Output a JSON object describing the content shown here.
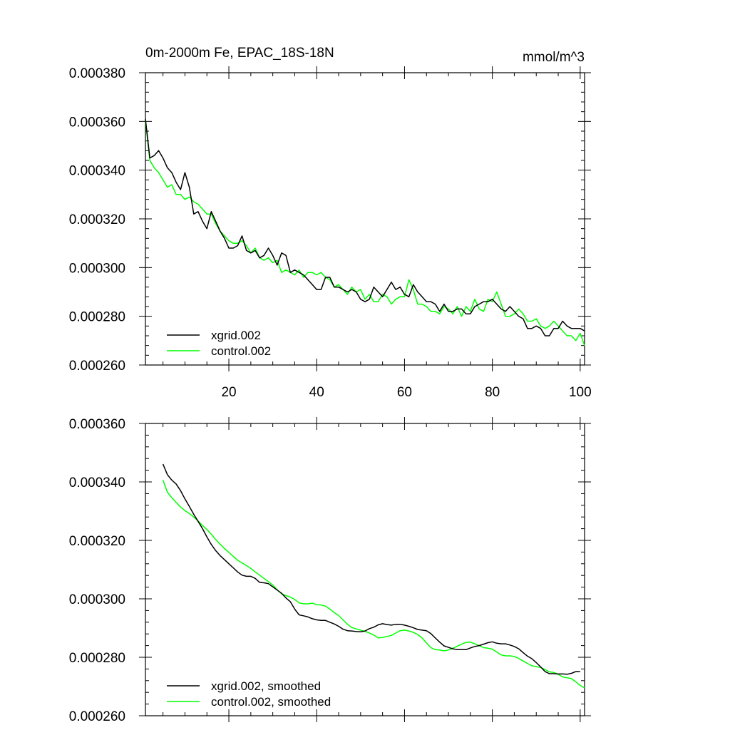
{
  "chart_data": [
    {
      "type": "line",
      "title": "0m-2000m Fe, EPAC_18S-18N",
      "units": "mmol/m^3",
      "xlabel": "",
      "ylabel": "",
      "xlim": [
        1,
        101
      ],
      "ylim": [
        0.00026,
        0.00038
      ],
      "xticks": [
        20,
        40,
        60,
        80,
        100
      ],
      "yticks": [
        0.00026,
        0.00028,
        0.0003,
        0.00032,
        0.00034,
        0.00036,
        0.00038
      ],
      "ytick_labels": [
        "0.000260",
        "0.000280",
        "0.000300",
        "0.000320",
        "0.000340",
        "0.000360",
        "0.000380"
      ],
      "legend_position": "bottom-left",
      "series": [
        {
          "name": "xgrid.002",
          "color": "#000000",
          "x_start": 1,
          "values": [
            0.000361,
            0.000345,
            0.000346,
            0.000348,
            0.000345,
            0.000341,
            0.000339,
            0.000335,
            0.000332,
            0.000339,
            0.000333,
            0.000322,
            0.000323,
            0.000319,
            0.000316,
            0.000323,
            0.000319,
            0.000315,
            0.000312,
            0.000308,
            0.000308,
            0.000309,
            0.000313,
            0.000307,
            0.000306,
            0.000307,
            0.000304,
            0.000305,
            0.000308,
            0.000305,
            0.000301,
            0.000306,
            0.000305,
            0.000298,
            0.000299,
            0.000298,
            0.000297,
            0.000295,
            0.000293,
            0.000291,
            0.000291,
            0.000296,
            0.000296,
            0.000292,
            0.000292,
            0.000291,
            0.00029,
            0.000291,
            0.00029,
            0.000287,
            0.000286,
            0.000287,
            0.000292,
            0.00029,
            0.000288,
            0.000291,
            0.000294,
            0.000291,
            0.000292,
            0.000289,
            0.000288,
            0.000293,
            0.00029,
            0.000288,
            0.000286,
            0.000286,
            0.000285,
            0.000282,
            0.000285,
            0.000282,
            0.000282,
            0.000283,
            0.000283,
            0.000281,
            0.000281,
            0.000284,
            0.000285,
            0.000286,
            0.000286,
            0.000287,
            0.000285,
            0.000283,
            0.000282,
            0.000284,
            0.000282,
            0.00028,
            0.000279,
            0.000275,
            0.000275,
            0.000276,
            0.000275,
            0.000272,
            0.000272,
            0.000275,
            0.000275,
            0.000278,
            0.000276,
            0.000275,
            0.000275,
            0.000275,
            0.000274
          ]
        },
        {
          "name": "control.002",
          "color": "#00ff00",
          "x_start": 1,
          "values": [
            0.00036,
            0.000344,
            0.000341,
            0.000339,
            0.000336,
            0.000333,
            0.000334,
            0.00033,
            0.00033,
            0.000328,
            0.000329,
            0.000327,
            0.000326,
            0.000324,
            0.000322,
            0.000322,
            0.000318,
            0.000315,
            0.000313,
            0.000311,
            0.00031,
            0.00031,
            0.000311,
            0.000309,
            0.000306,
            0.000308,
            0.000304,
            0.000303,
            0.000304,
            0.000302,
            0.000303,
            0.000298,
            0.000299,
            0.000298,
            0.000297,
            0.000299,
            0.000296,
            0.000298,
            0.000298,
            0.000297,
            0.000298,
            0.000296,
            0.000295,
            0.000292,
            0.000293,
            0.000291,
            0.000289,
            0.000292,
            0.00029,
            0.000291,
            0.000287,
            0.000289,
            0.000286,
            0.000286,
            0.000289,
            0.000288,
            0.000285,
            0.000287,
            0.000288,
            0.000288,
            0.000295,
            0.000291,
            0.000285,
            0.000285,
            0.000284,
            0.000282,
            0.000282,
            0.000281,
            0.000284,
            0.000283,
            0.000281,
            0.000284,
            0.00028,
            0.000284,
            0.000282,
            0.000287,
            0.000283,
            0.000282,
            0.000287,
            0.000286,
            0.00029,
            0.000285,
            0.00028,
            0.00028,
            0.000281,
            0.000283,
            0.000281,
            0.000278,
            0.000278,
            0.000279,
            0.000276,
            0.000275,
            0.000276,
            0.000278,
            0.000276,
            0.000274,
            0.000272,
            0.000272,
            0.00027,
            0.000273,
            0.000268
          ]
        }
      ]
    },
    {
      "type": "line",
      "title": "",
      "xlabel": "",
      "ylabel": "",
      "xlim": [
        1,
        101
      ],
      "ylim": [
        0.00026,
        0.00036
      ],
      "xticks": [
        20,
        40,
        60,
        80,
        100
      ],
      "yticks": [
        0.00026,
        0.00028,
        0.0003,
        0.00032,
        0.00034,
        0.00036
      ],
      "ytick_labels": [
        "0.000260",
        "0.000280",
        "0.000300",
        "0.000320",
        "0.000340",
        "0.000360"
      ],
      "legend_position": "bottom-left",
      "series": [
        {
          "name": "xgrid.002, smoothed",
          "color": "#000000",
          "x_start": 5,
          "values": [
            0.0003461,
            0.0003425,
            0.0003406,
            0.0003393,
            0.000337,
            0.0003342,
            0.0003316,
            0.0003289,
            0.0003265,
            0.000324,
            0.0003212,
            0.0003186,
            0.0003165,
            0.0003148,
            0.0003134,
            0.000312,
            0.0003106,
            0.0003092,
            0.0003081,
            0.0003077,
            0.0003077,
            0.000307,
            0.0003056,
            0.0003055,
            0.0003052,
            0.0003041,
            0.000303,
            0.0003019,
            0.0003003,
            0.000299,
            0.0002965,
            0.0002945,
            0.0002942,
            0.0002938,
            0.0002932,
            0.0002928,
            0.0002926,
            0.0002926,
            0.000292,
            0.0002914,
            0.0002906,
            0.0002896,
            0.0002891,
            0.000289,
            0.0002888,
            0.0002887,
            0.000289,
            0.0002898,
            0.0002903,
            0.0002911,
            0.0002915,
            0.0002912,
            0.000291,
            0.0002913,
            0.0002913,
            0.000291,
            0.0002906,
            0.0002901,
            0.0002895,
            0.0002893,
            0.0002891,
            0.0002881,
            0.0002866,
            0.0002852,
            0.0002839,
            0.0002834,
            0.0002829,
            0.0002826,
            0.0002826,
            0.0002826,
            0.0002832,
            0.0002837,
            0.000284,
            0.0002845,
            0.000285,
            0.0002853,
            0.0002848,
            0.0002846,
            0.0002846,
            0.0002842,
            0.0002837,
            0.0002829,
            0.0002816,
            0.0002804,
            0.0002795,
            0.0002782,
            0.0002767,
            0.0002751,
            0.0002744,
            0.0002744,
            0.0002743,
            0.0002743,
            0.0002742,
            0.0002745,
            0.0002751,
            0.0002751
          ]
        },
        {
          "name": "control.002, smoothed",
          "color": "#00ff00",
          "x_start": 5,
          "values": [
            0.0003406,
            0.0003365,
            0.0003346,
            0.000333,
            0.0003314,
            0.0003302,
            0.0003292,
            0.000328,
            0.0003266,
            0.0003251,
            0.0003237,
            0.0003221,
            0.0003203,
            0.0003187,
            0.0003172,
            0.0003159,
            0.0003145,
            0.0003132,
            0.0003123,
            0.0003114,
            0.0003104,
            0.0003092,
            0.0003081,
            0.000307,
            0.0003059,
            0.0003047,
            0.0003031,
            0.0003017,
            0.0003011,
            0.0003006,
            0.0002998,
            0.0002986,
            0.0002983,
            0.0002983,
            0.0002985,
            0.000298,
            0.0002979,
            0.0002975,
            0.0002965,
            0.0002953,
            0.0002943,
            0.0002928,
            0.0002913,
            0.0002902,
            0.0002897,
            0.0002893,
            0.0002889,
            0.0002883,
            0.0002876,
            0.0002866,
            0.0002868,
            0.0002871,
            0.0002875,
            0.0002883,
            0.0002891,
            0.0002893,
            0.000289,
            0.0002885,
            0.0002878,
            0.0002866,
            0.0002849,
            0.0002833,
            0.0002826,
            0.0002825,
            0.0002822,
            0.0002825,
            0.0002831,
            0.0002838,
            0.0002845,
            0.0002851,
            0.0002852,
            0.0002846,
            0.000284,
            0.0002833,
            0.0002831,
            0.0002828,
            0.0002818,
            0.0002808,
            0.0002805,
            0.0002805,
            0.0002803,
            0.0002796,
            0.0002787,
            0.0002779,
            0.0002771,
            0.0002768,
            0.0002765,
            0.0002758,
            0.000275,
            0.0002748,
            0.0002742,
            0.0002733,
            0.000273,
            0.0002727,
            0.0002716,
            0.0002704,
            0.0002695
          ]
        }
      ]
    }
  ]
}
